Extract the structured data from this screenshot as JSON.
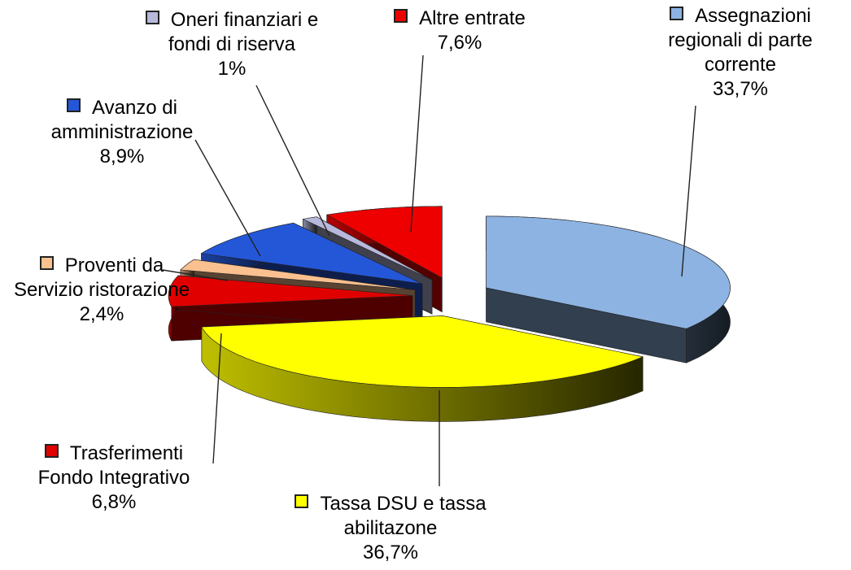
{
  "chart_data": {
    "type": "pie",
    "categories": [
      "Assegnazioni regionali di parte corrente",
      "Tassa DSU e tassa abilitazone",
      "Trasferimenti Fondo Integrativo",
      "Proventi da Servizio ristorazione",
      "Avanzo di amministrazione",
      "Oneri finanziari e fondi di riserva",
      "Altre entrate"
    ],
    "values": [
      33.7,
      36.7,
      6.8,
      2.4,
      8.9,
      1,
      7.6
    ],
    "value_labels": [
      "33,7%",
      "36,7%",
      "6,8%",
      "2,4%",
      "8,9%",
      "1%",
      "7,6%"
    ],
    "colors": [
      "#8db3e2",
      "#ffff00",
      "#e00000",
      "#fac090",
      "#2457d8",
      "#b8b8dc",
      "#ee0000"
    ]
  }
}
